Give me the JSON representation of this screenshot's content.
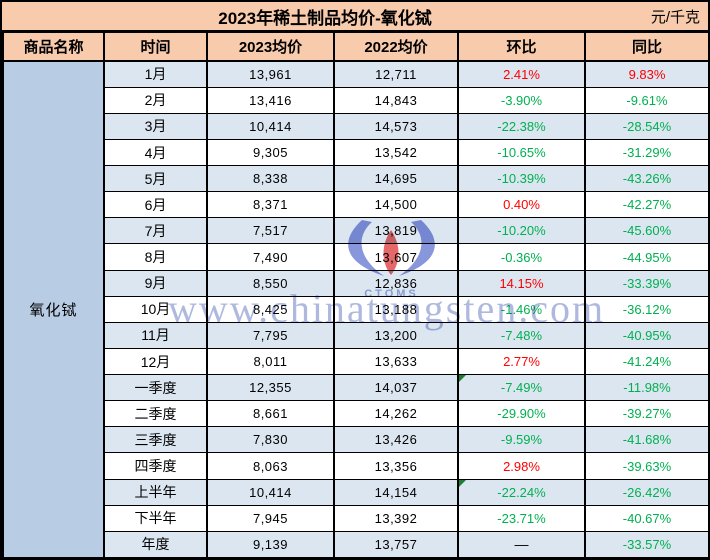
{
  "title": "2023年稀土制品均价-氧化铽",
  "unit": "元/千克",
  "header": {
    "product": "商品名称",
    "period": "时间",
    "avg2023": "2023均价",
    "avg2022": "2022均价",
    "mom": "环比",
    "yoy": "同比"
  },
  "product_name": "氧化铽",
  "watermark": {
    "url_text": "www.chinatungsten.com",
    "logo_caption": "CTOMS"
  },
  "colors": {
    "header_bg": "#F8CBAD",
    "row_alt_bg": "#DCE6F1",
    "row_bg": "#FFFFFF",
    "product_bg": "#B8CCE4",
    "positive_pct": "#FF0000",
    "negative_pct": "#00B050",
    "watermark": "#7E8FCB"
  },
  "rows": [
    {
      "period": "1月",
      "avg_2023": "13,961",
      "avg_2022": "12,711",
      "mom": "2.41%",
      "mom_sign": "pos",
      "yoy": "9.83%",
      "yoy_sign": "pos"
    },
    {
      "period": "2月",
      "avg_2023": "13,416",
      "avg_2022": "14,843",
      "mom": "-3.90%",
      "mom_sign": "neg",
      "yoy": "-9.61%",
      "yoy_sign": "neg"
    },
    {
      "period": "3月",
      "avg_2023": "10,414",
      "avg_2022": "14,573",
      "mom": "-22.38%",
      "mom_sign": "neg",
      "yoy": "-28.54%",
      "yoy_sign": "neg"
    },
    {
      "period": "4月",
      "avg_2023": "9,305",
      "avg_2022": "13,542",
      "mom": "-10.65%",
      "mom_sign": "neg",
      "yoy": "-31.29%",
      "yoy_sign": "neg"
    },
    {
      "period": "5月",
      "avg_2023": "8,338",
      "avg_2022": "14,695",
      "mom": "-10.39%",
      "mom_sign": "neg",
      "yoy": "-43.26%",
      "yoy_sign": "neg"
    },
    {
      "period": "6月",
      "avg_2023": "8,371",
      "avg_2022": "14,500",
      "mom": "0.40%",
      "mom_sign": "pos",
      "yoy": "-42.27%",
      "yoy_sign": "neg"
    },
    {
      "period": "7月",
      "avg_2023": "7,517",
      "avg_2022": "13,819",
      "mom": "-10.20%",
      "mom_sign": "neg",
      "yoy": "-45.60%",
      "yoy_sign": "neg"
    },
    {
      "period": "8月",
      "avg_2023": "7,490",
      "avg_2022": "13,607",
      "mom": "-0.36%",
      "mom_sign": "neg",
      "yoy": "-44.95%",
      "yoy_sign": "neg"
    },
    {
      "period": "9月",
      "avg_2023": "8,550",
      "avg_2022": "12,836",
      "mom": "14.15%",
      "mom_sign": "pos",
      "yoy": "-33.39%",
      "yoy_sign": "neg"
    },
    {
      "period": "10月",
      "avg_2023": "8,425",
      "avg_2022": "13,188",
      "mom": "-1.46%",
      "mom_sign": "neg",
      "yoy": "-36.12%",
      "yoy_sign": "neg"
    },
    {
      "period": "11月",
      "avg_2023": "7,795",
      "avg_2022": "13,200",
      "mom": "-7.48%",
      "mom_sign": "neg",
      "yoy": "-40.95%",
      "yoy_sign": "neg"
    },
    {
      "period": "12月",
      "avg_2023": "8,011",
      "avg_2022": "13,633",
      "mom": "2.77%",
      "mom_sign": "pos",
      "yoy": "-41.24%",
      "yoy_sign": "neg"
    },
    {
      "period": "一季度",
      "avg_2023": "12,355",
      "avg_2022": "14,037",
      "mom": "-7.49%",
      "mom_sign": "neg",
      "mom_flag": true,
      "yoy": "-11.98%",
      "yoy_sign": "neg"
    },
    {
      "period": "二季度",
      "avg_2023": "8,661",
      "avg_2022": "14,262",
      "mom": "-29.90%",
      "mom_sign": "neg",
      "yoy": "-39.27%",
      "yoy_sign": "neg"
    },
    {
      "period": "三季度",
      "avg_2023": "7,830",
      "avg_2022": "13,426",
      "mom": "-9.59%",
      "mom_sign": "neg",
      "yoy": "-41.68%",
      "yoy_sign": "neg"
    },
    {
      "period": "四季度",
      "avg_2023": "8,063",
      "avg_2022": "13,356",
      "mom": "2.98%",
      "mom_sign": "pos",
      "yoy": "-39.63%",
      "yoy_sign": "neg"
    },
    {
      "period": "上半年",
      "avg_2023": "10,414",
      "avg_2022": "14,154",
      "mom": "-22.24%",
      "mom_sign": "neg",
      "mom_flag": true,
      "yoy": "-26.42%",
      "yoy_sign": "neg"
    },
    {
      "period": "下半年",
      "avg_2023": "7,945",
      "avg_2022": "13,392",
      "mom": "-23.71%",
      "mom_sign": "neg",
      "yoy": "-40.67%",
      "yoy_sign": "neg"
    },
    {
      "period": "年度",
      "avg_2023": "9,139",
      "avg_2022": "13,757",
      "mom": "—",
      "mom_sign": "dash",
      "yoy": "-33.57%",
      "yoy_sign": "neg"
    }
  ],
  "chart_data": {
    "type": "table",
    "title": "2023年稀土制品均价-氧化铽",
    "unit": "元/千克",
    "product": "氧化铽",
    "columns": [
      "商品名称",
      "时间",
      "2023均价",
      "2022均价",
      "环比",
      "同比"
    ],
    "periods": [
      "1月",
      "2月",
      "3月",
      "4月",
      "5月",
      "6月",
      "7月",
      "8月",
      "9月",
      "10月",
      "11月",
      "12月",
      "一季度",
      "二季度",
      "三季度",
      "四季度",
      "上半年",
      "下半年",
      "年度"
    ],
    "avg_2023": [
      13961,
      13416,
      10414,
      9305,
      8338,
      8371,
      7517,
      7490,
      8550,
      8425,
      7795,
      8011,
      12355,
      8661,
      7830,
      8063,
      10414,
      7945,
      9139
    ],
    "avg_2022": [
      12711,
      14843,
      14573,
      13542,
      14695,
      14500,
      13819,
      13607,
      12836,
      13188,
      13200,
      13633,
      14037,
      14262,
      13426,
      13356,
      14154,
      13392,
      13757
    ],
    "mom_pct": [
      2.41,
      -3.9,
      -22.38,
      -10.65,
      -10.39,
      0.4,
      -10.2,
      -0.36,
      14.15,
      -1.46,
      -7.48,
      2.77,
      -7.49,
      -29.9,
      -9.59,
      2.98,
      -22.24,
      -23.71,
      null
    ],
    "yoy_pct": [
      9.83,
      -9.61,
      -28.54,
      -31.29,
      -43.26,
      -42.27,
      -45.6,
      -44.95,
      -33.39,
      -36.12,
      -40.95,
      -41.24,
      -11.98,
      -39.27,
      -41.68,
      -39.63,
      -26.42,
      -40.67,
      -33.57
    ]
  }
}
